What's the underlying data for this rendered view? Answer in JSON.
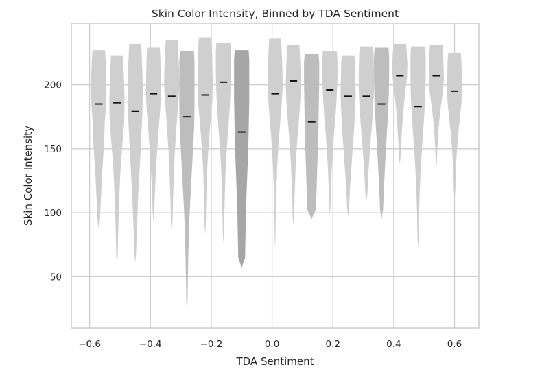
{
  "chart_data": {
    "type": "violin",
    "title": "Skin Color Intensity, Binned by TDA Sentiment",
    "xlabel": "TDA Sentiment",
    "ylabel": "Skin Color Intensity",
    "xlim": [
      -0.66,
      0.68
    ],
    "ylim": [
      10,
      248
    ],
    "xticks": [
      -0.6,
      -0.4,
      -0.2,
      0.0,
      0.2,
      0.4,
      0.6
    ],
    "xtick_labels": [
      "−0.6",
      "−0.4",
      "−0.2",
      "0.0",
      "0.2",
      "0.4",
      "0.6"
    ],
    "yticks": [
      50,
      100,
      150,
      200
    ],
    "ytick_labels": [
      "50",
      "100",
      "150",
      "200"
    ],
    "grid": true,
    "colors": {
      "violin_light": "#cfcfcf",
      "violin_mid": "#bdbdbd",
      "violin_dark": "#a6a6a6",
      "median": "#111111"
    },
    "violin_half_width": 0.025,
    "violins": [
      {
        "x": -0.57,
        "min": 87,
        "max": 227,
        "median": 185,
        "shade": "light",
        "profile": [
          0.15,
          0.25,
          0.35,
          0.45,
          0.6,
          0.72,
          0.78,
          0.95,
          1.0,
          0.98,
          0.9
        ]
      },
      {
        "x": -0.51,
        "min": 59,
        "max": 223,
        "median": 186,
        "shade": "light",
        "profile": [
          0.1,
          0.15,
          0.22,
          0.3,
          0.4,
          0.55,
          0.75,
          0.95,
          1.0,
          0.95,
          0.85
        ]
      },
      {
        "x": -0.45,
        "min": 61,
        "max": 232,
        "median": 179,
        "shade": "light",
        "profile": [
          0.12,
          0.2,
          0.3,
          0.4,
          0.55,
          0.7,
          0.82,
          0.95,
          1.0,
          0.95,
          0.85
        ]
      },
      {
        "x": -0.39,
        "min": 93,
        "max": 229,
        "median": 193,
        "shade": "light",
        "profile": [
          0.1,
          0.18,
          0.28,
          0.4,
          0.55,
          0.72,
          0.9,
          1.0,
          0.95,
          0.9
        ]
      },
      {
        "x": -0.33,
        "min": 85,
        "max": 235,
        "median": 191,
        "shade": "light",
        "profile": [
          0.1,
          0.15,
          0.22,
          0.3,
          0.4,
          0.55,
          0.7,
          0.9,
          1.0,
          0.95,
          0.85
        ]
      },
      {
        "x": -0.28,
        "min": 22,
        "max": 226,
        "median": 175,
        "shade": "mid",
        "profile": [
          0.08,
          0.12,
          0.18,
          0.25,
          0.35,
          0.5,
          0.65,
          0.8,
          0.95,
          1.0,
          1.0,
          1.0
        ]
      },
      {
        "x": -0.22,
        "min": 83,
        "max": 237,
        "median": 192,
        "shade": "light",
        "profile": [
          0.08,
          0.12,
          0.18,
          0.25,
          0.38,
          0.55,
          0.75,
          0.95,
          1.0,
          0.95,
          0.9
        ]
      },
      {
        "x": -0.16,
        "min": 76,
        "max": 233,
        "median": 202,
        "shade": "light",
        "profile": [
          0.08,
          0.12,
          0.18,
          0.25,
          0.35,
          0.5,
          0.68,
          0.85,
          0.95,
          1.0,
          1.0
        ]
      },
      {
        "x": -0.1,
        "min": 57,
        "max": 227,
        "median": 163,
        "shade": "dark",
        "profile": [
          0.45,
          0.5,
          0.55,
          0.62,
          0.72,
          0.82,
          0.9,
          0.95,
          1.0,
          1.0,
          1.0
        ]
      },
      {
        "x": 0.01,
        "min": 72,
        "max": 236,
        "median": 193,
        "shade": "light",
        "profile": [
          0.05,
          0.08,
          0.12,
          0.2,
          0.3,
          0.45,
          0.65,
          0.85,
          1.0,
          0.95,
          0.85
        ]
      },
      {
        "x": 0.07,
        "min": 91,
        "max": 231,
        "median": 203,
        "shade": "light",
        "profile": [
          0.1,
          0.15,
          0.22,
          0.3,
          0.42,
          0.58,
          0.75,
          0.9,
          1.0,
          0.95,
          0.85
        ]
      },
      {
        "x": 0.13,
        "min": 95,
        "max": 224,
        "median": 171,
        "shade": "mid",
        "profile": [
          0.55,
          0.65,
          0.72,
          0.8,
          0.88,
          0.92,
          0.96,
          1.0,
          1.0
        ]
      },
      {
        "x": 0.19,
        "min": 98,
        "max": 226,
        "median": 196,
        "shade": "light",
        "profile": [
          0.08,
          0.15,
          0.25,
          0.38,
          0.55,
          0.75,
          0.9,
          1.0,
          1.0
        ]
      },
      {
        "x": 0.25,
        "min": 97,
        "max": 223,
        "median": 191,
        "shade": "light",
        "profile": [
          0.12,
          0.22,
          0.35,
          0.5,
          0.65,
          0.8,
          0.9,
          1.0,
          0.95,
          0.9
        ]
      },
      {
        "x": 0.31,
        "min": 109,
        "max": 230,
        "median": 191,
        "shade": "light",
        "profile": [
          0.15,
          0.25,
          0.4,
          0.55,
          0.75,
          0.9,
          1.0,
          1.0,
          0.95
        ]
      },
      {
        "x": 0.36,
        "min": 95,
        "max": 229,
        "median": 185,
        "shade": "mid",
        "profile": [
          0.2,
          0.3,
          0.42,
          0.55,
          0.7,
          0.85,
          0.95,
          1.0,
          1.0
        ]
      },
      {
        "x": 0.42,
        "min": 138,
        "max": 232,
        "median": 207,
        "shade": "light",
        "profile": [
          0.1,
          0.18,
          0.28,
          0.4,
          0.55,
          0.75,
          0.95,
          1.0,
          0.9
        ]
      },
      {
        "x": 0.48,
        "min": 73,
        "max": 230,
        "median": 183,
        "shade": "light",
        "profile": [
          0.08,
          0.12,
          0.2,
          0.3,
          0.45,
          0.62,
          0.8,
          0.95,
          1.0,
          1.0
        ]
      },
      {
        "x": 0.54,
        "min": 135,
        "max": 231,
        "median": 207,
        "shade": "light",
        "profile": [
          0.08,
          0.15,
          0.25,
          0.4,
          0.6,
          0.85,
          1.0,
          0.95,
          0.9
        ]
      },
      {
        "x": 0.6,
        "min": 111,
        "max": 225,
        "median": 195,
        "shade": "light",
        "profile": [
          0.1,
          0.15,
          0.22,
          0.35,
          0.5,
          0.7,
          0.9,
          1.0,
          0.95,
          0.9
        ]
      }
    ]
  }
}
